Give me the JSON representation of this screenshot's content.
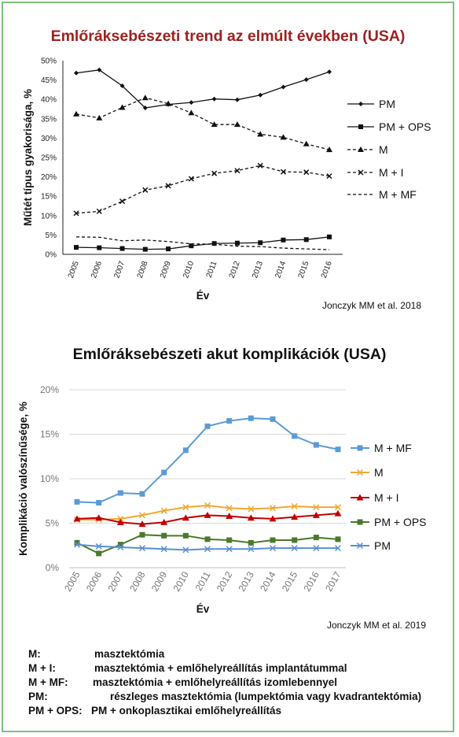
{
  "chart_data": [
    {
      "type": "line",
      "title": "Emlőráksebészeti trend az elmúlt években (USA)",
      "xlabel": "Év",
      "ylabel": "Műtét típus gyakorisága, %",
      "ylim": [
        0,
        50
      ],
      "y_ticks": [
        "0%",
        "5%",
        "10%",
        "15%",
        "20%",
        "25%",
        "30%",
        "35%",
        "40%",
        "45%",
        "50%"
      ],
      "categories": [
        "2005",
        "2006",
        "2007",
        "2008",
        "2009",
        "2010",
        "2011",
        "2012",
        "2013",
        "2014",
        "2015",
        "2016"
      ],
      "legend_position": "right",
      "grid": false,
      "series": [
        {
          "name": "PM",
          "marker": "diamond",
          "style": "solid",
          "values": [
            46.8,
            47.6,
            43.5,
            37.8,
            38.7,
            39.2,
            40.1,
            39.9,
            41.1,
            43.2,
            45.1,
            47.1
          ]
        },
        {
          "name": "PM + OPS",
          "marker": "square",
          "style": "solid",
          "values": [
            1.8,
            1.7,
            1.5,
            1.3,
            1.4,
            2.2,
            2.8,
            2.9,
            3.0,
            3.7,
            3.8,
            4.5
          ]
        },
        {
          "name": "M",
          "marker": "triangle",
          "style": "dashed",
          "values": [
            36.2,
            35.2,
            37.9,
            40.4,
            38.9,
            36.5,
            33.5,
            33.5,
            31.0,
            30.2,
            28.5,
            27.0
          ]
        },
        {
          "name": "M + I",
          "marker": "x",
          "style": "dashed",
          "values": [
            10.6,
            11.1,
            13.7,
            16.6,
            17.7,
            19.5,
            20.9,
            21.6,
            22.9,
            21.3,
            21.2,
            20.2
          ]
        },
        {
          "name": "M + MF",
          "marker": "none",
          "style": "dashed",
          "values": [
            4.5,
            4.4,
            3.5,
            3.7,
            3.3,
            2.7,
            2.6,
            2.1,
            2.0,
            1.6,
            1.4,
            1.2
          ]
        }
      ],
      "annotations": [
        "Jonczyk MM et al. 2018"
      ]
    },
    {
      "type": "line",
      "title": "Emlőráksebészeti akut komplikációk (USA)",
      "xlabel": "Év",
      "ylabel": "Komplikáció valószínűsége, %",
      "ylim": [
        0,
        20
      ],
      "y_ticks": [
        "0%",
        "5%",
        "10%",
        "15%",
        "20%"
      ],
      "categories": [
        "2005",
        "2006",
        "2007",
        "2008",
        "2009",
        "2010",
        "2011",
        "2012",
        "2013",
        "2014",
        "2015",
        "2016",
        "2017"
      ],
      "legend_position": "right",
      "grid": true,
      "series": [
        {
          "name": "M + MF",
          "color": "#5b9bd5",
          "marker": "square",
          "values": [
            7.4,
            7.3,
            8.4,
            8.3,
            10.7,
            13.2,
            15.9,
            16.5,
            16.8,
            16.7,
            14.8,
            13.8,
            13.3
          ]
        },
        {
          "name": "M",
          "color": "#f0a830",
          "marker": "x",
          "values": [
            5.4,
            5.4,
            5.5,
            5.9,
            6.4,
            6.8,
            7.0,
            6.7,
            6.6,
            6.7,
            6.9,
            6.8,
            6.8
          ]
        },
        {
          "name": "M + I",
          "color": "#c00000",
          "marker": "triangle",
          "values": [
            5.5,
            5.6,
            5.1,
            4.9,
            5.1,
            5.6,
            5.9,
            5.8,
            5.6,
            5.5,
            5.7,
            5.9,
            6.1
          ]
        },
        {
          "name": "PM + OPS",
          "color": "#4a7a2a",
          "marker": "square",
          "values": [
            2.8,
            1.6,
            2.6,
            3.7,
            3.6,
            3.6,
            3.2,
            3.1,
            2.8,
            3.1,
            3.1,
            3.4,
            3.2
          ]
        },
        {
          "name": "PM",
          "color": "#5b8fd0",
          "marker": "x",
          "values": [
            2.6,
            2.4,
            2.3,
            2.2,
            2.1,
            2.0,
            2.1,
            2.1,
            2.1,
            2.2,
            2.2,
            2.2,
            2.2
          ]
        }
      ],
      "annotations": [
        "Jonczyk MM et al. 2019"
      ]
    }
  ],
  "definitions": [
    {
      "abbr": "M:",
      "desc": "masztektómia"
    },
    {
      "abbr": "M + I:",
      "desc": "masztektómia + emlőhelyreállítás implantátummal"
    },
    {
      "abbr": "M + MF:",
      "desc": "masztektómia + emlőhelyreállítás izomlebennyel"
    },
    {
      "abbr": "PM:",
      "desc": "részleges masztektómia (lumpektómia vagy kvadrantektómia)"
    },
    {
      "abbr": "PM + OPS:",
      "desc": "PM + onkoplasztikai emlőhelyreállítás"
    }
  ]
}
